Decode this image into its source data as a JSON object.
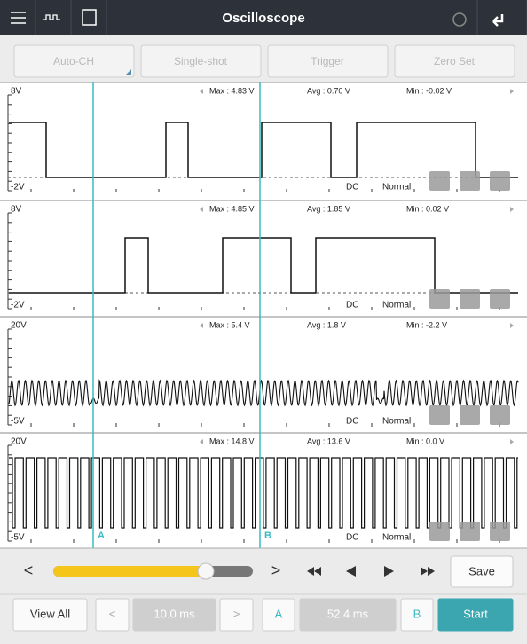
{
  "header": {
    "title": "Oscilloscope"
  },
  "toolbar": {
    "buttons": [
      "Auto-CH",
      "Single-shot",
      "Trigger",
      "Zero Set"
    ]
  },
  "channels": [
    {
      "top": "8V",
      "bottom": "-2V",
      "max": "Max : 4.83 V",
      "avg": "Avg : 0.70 V",
      "min": "Min : -0.02 V",
      "coupling": "DC",
      "mode": "Normal"
    },
    {
      "top": "8V",
      "bottom": "-2V",
      "max": "Max : 4.85 V",
      "avg": "Avg : 1.85 V",
      "min": "Min : 0.02 V",
      "coupling": "DC",
      "mode": "Normal"
    },
    {
      "top": "20V",
      "bottom": "-5V",
      "max": "Max : 5.4 V",
      "avg": "Avg : 1.8 V",
      "min": "Min : -2.2 V",
      "coupling": "DC",
      "mode": "Normal"
    },
    {
      "top": "20V",
      "bottom": "-5V",
      "max": "Max : 14.8 V",
      "avg": "Avg : 13.6 V",
      "min": "Min : 0.0 V",
      "coupling": "DC",
      "mode": "Normal"
    }
  ],
  "cursors": [
    "A",
    "B"
  ],
  "controls": {
    "prev": "<",
    "next": ">",
    "save": "Save",
    "view_all": "View All",
    "left": "<",
    "right": ">",
    "time_a": "10.0 ms",
    "label_a": "A",
    "time_b": "52.4 ms",
    "label_b": "B",
    "start": "Start"
  }
}
